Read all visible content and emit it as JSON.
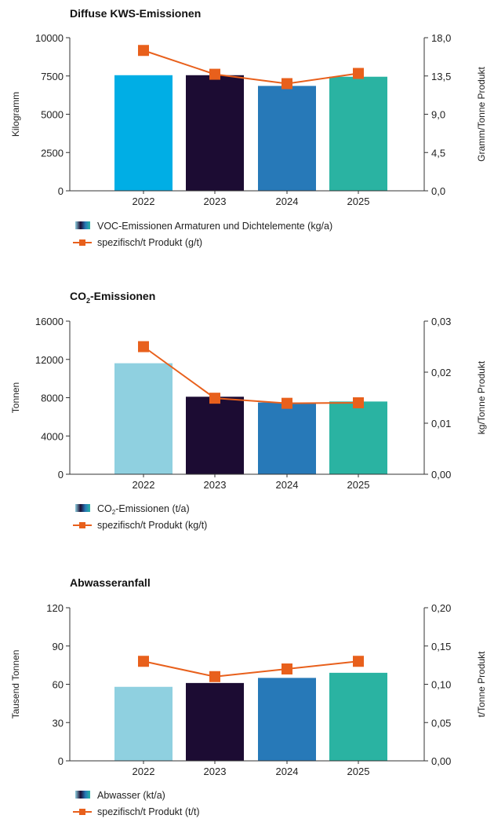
{
  "chart_data": [
    {
      "type": "bar",
      "title": "Diffuse KWS-Emissionen",
      "title_sub": "",
      "title_rest": "",
      "categories": [
        "2022",
        "2023",
        "2024",
        "2025"
      ],
      "ylabel": "Kilogramm",
      "y2label": "Gramm/Tonne Produkt",
      "ylim": [
        0,
        10000
      ],
      "yticks": [
        "0",
        "2500",
        "5000",
        "7500",
        "10000"
      ],
      "y2lim": [
        0,
        18
      ],
      "y2ticks": [
        "0,0",
        "4,5",
        "9,0",
        "13,5",
        "18,0"
      ],
      "bar_colors": [
        "#00aee5",
        "#1c0c33",
        "#2779b8",
        "#2ab3a2"
      ],
      "line_color": "#e8601c",
      "series": [
        {
          "name": "VOC-Emissionen Armaturen und Dichtelemente (kg/a)",
          "kind": "bar",
          "axis": "left",
          "values": [
            7550,
            7550,
            6850,
            7450
          ]
        },
        {
          "name": "spezifisch/t Produkt (g/t)",
          "kind": "line",
          "axis": "right",
          "values": [
            16.5,
            13.7,
            12.6,
            13.8
          ]
        }
      ],
      "legend": [
        {
          "text": "VOC-Emissionen Armaturen und Dichtelemente (kg/a)",
          "sub": "",
          "rest": ""
        },
        {
          "text": "spezifisch/t Produkt (g/t)",
          "sub": "",
          "rest": ""
        }
      ]
    },
    {
      "type": "bar",
      "title": "CO",
      "title_sub": "2",
      "title_rest": "-Emissionen",
      "categories": [
        "2022",
        "2023",
        "2024",
        "2025"
      ],
      "ylabel": "Tonnen",
      "y2label": "kg/Tonne Produkt",
      "ylim": [
        0,
        16000
      ],
      "yticks": [
        "0",
        "4000",
        "8000",
        "12000",
        "16000"
      ],
      "y2lim": [
        0,
        0.03
      ],
      "y2ticks": [
        "0,00",
        "0,01",
        "0,02",
        "0,03"
      ],
      "bar_colors": [
        "#8fd0e0",
        "#1c0c33",
        "#2779b8",
        "#2ab3a2"
      ],
      "line_color": "#e8601c",
      "series": [
        {
          "name": "CO2-Emissionen (t/a)",
          "kind": "bar",
          "axis": "left",
          "values": [
            11600,
            8100,
            7500,
            7600
          ]
        },
        {
          "name": "spezifisch/t Produkt (kg/t)",
          "kind": "line",
          "axis": "right",
          "values": [
            0.025,
            0.0149,
            0.0139,
            0.014
          ]
        }
      ],
      "legend": [
        {
          "text": "CO",
          "sub": "2",
          "rest": "-Emissionen (t/a)"
        },
        {
          "text": "spezifisch/t Produkt (kg/t)",
          "sub": "",
          "rest": ""
        }
      ]
    },
    {
      "type": "bar",
      "title": "Abwasseranfall",
      "title_sub": "",
      "title_rest": "",
      "categories": [
        "2022",
        "2023",
        "2024",
        "2025"
      ],
      "ylabel": "Tausend Tonnen",
      "y2label": "t/Tonne Produkt",
      "ylim": [
        0,
        120
      ],
      "yticks": [
        "0",
        "30",
        "60",
        "90",
        "120"
      ],
      "y2lim": [
        0,
        0.2
      ],
      "y2ticks": [
        "0,00",
        "0,05",
        "0,10",
        "0,15",
        "0,20"
      ],
      "bar_colors": [
        "#8fd0e0",
        "#1c0c33",
        "#2779b8",
        "#2ab3a2"
      ],
      "line_color": "#e8601c",
      "series": [
        {
          "name": "Abwasser (kt/a)",
          "kind": "bar",
          "axis": "left",
          "values": [
            58,
            61,
            65,
            69
          ]
        },
        {
          "name": "spezifisch/t Produkt (t/t)",
          "kind": "line",
          "axis": "right",
          "values": [
            0.13,
            0.11,
            0.12,
            0.13
          ]
        }
      ],
      "legend": [
        {
          "text": "Abwasser (kt/a)",
          "sub": "",
          "rest": ""
        },
        {
          "text": "spezifisch/t Produkt (t/t)",
          "sub": "",
          "rest": ""
        }
      ]
    }
  ]
}
